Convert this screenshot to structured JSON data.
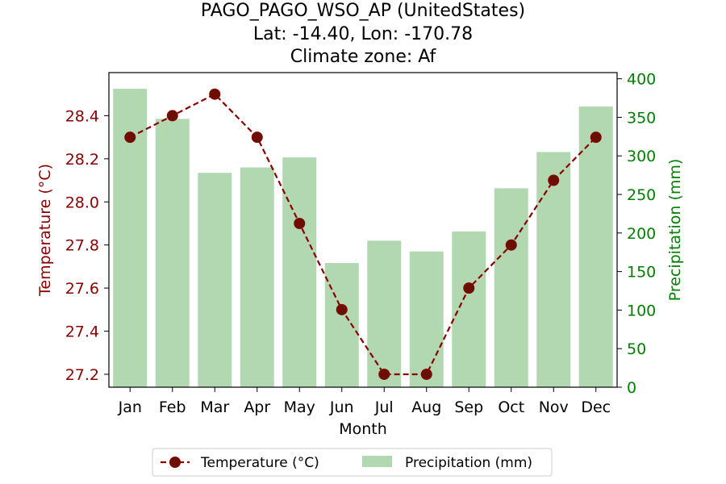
{
  "chart_data": {
    "type": "bar+line",
    "title_lines": [
      "PAGO_PAGO_WSO_AP (UnitedStates)",
      "Lat: -14.40, Lon: -170.78",
      "Climate zone: Af"
    ],
    "xlabel": "Month",
    "ylabel_left": "Temperature (°C)",
    "ylabel_right": "Precipitation (mm)",
    "categories": [
      "Jan",
      "Feb",
      "Mar",
      "Apr",
      "May",
      "Jun",
      "Jul",
      "Aug",
      "Sep",
      "Oct",
      "Nov",
      "Dec"
    ],
    "temperature": {
      "name": "Temperature (°C)",
      "values": [
        28.3,
        28.4,
        28.5,
        28.3,
        27.9,
        27.5,
        27.2,
        27.2,
        27.6,
        27.8,
        28.1,
        28.3
      ],
      "color": "#8b0000",
      "ylim": [
        27.14,
        28.6
      ],
      "ticks": [
        "27.2",
        "27.4",
        "27.6",
        "27.8",
        "28.0",
        "28.2",
        "28.4"
      ]
    },
    "precipitation": {
      "name": "Precipitation (mm)",
      "values": [
        387,
        348,
        278,
        285,
        298,
        161,
        190,
        176,
        202,
        258,
        305,
        364
      ],
      "color": "#b2d8b2",
      "ylim": [
        0,
        408
      ],
      "ticks": [
        "0",
        "50",
        "100",
        "150",
        "200",
        "250",
        "300",
        "350",
        "400"
      ]
    },
    "legend": {
      "placement": "bottom-center",
      "entries": [
        "Temperature (°C)",
        "Precipitation (mm)"
      ]
    }
  }
}
